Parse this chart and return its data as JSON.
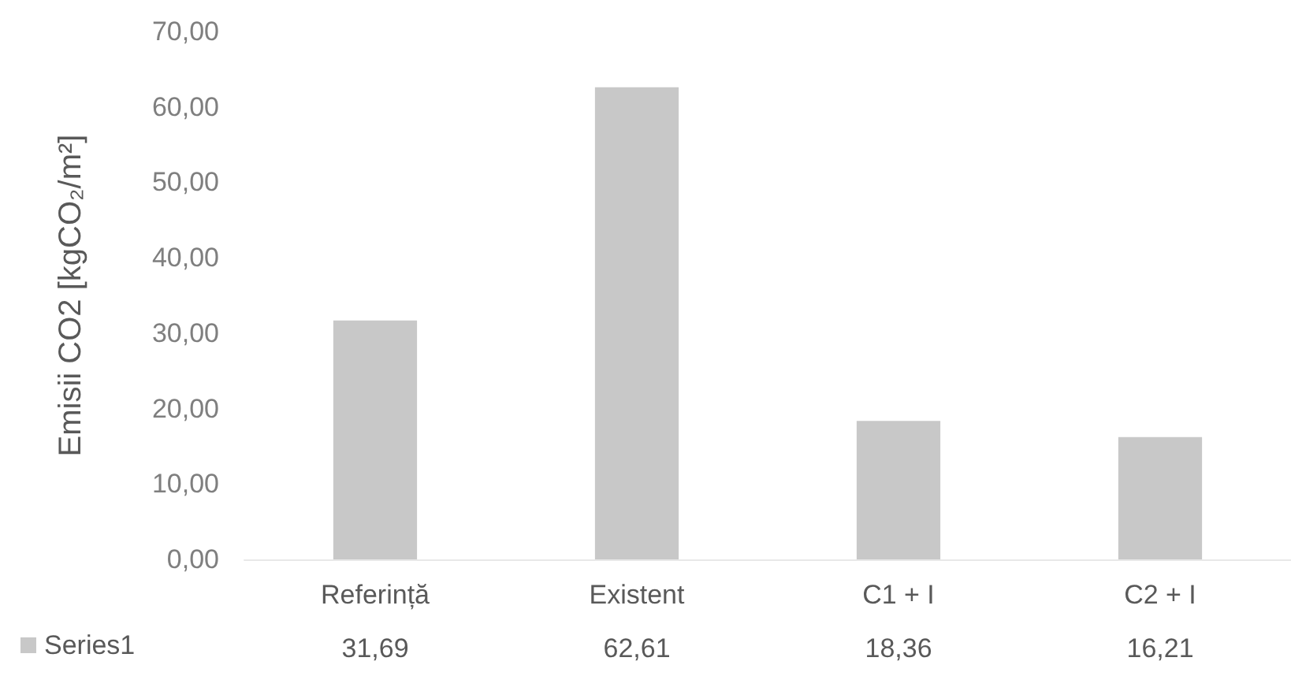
{
  "chart_data": {
    "type": "bar",
    "ylabel": "Emisii CO2 [kgCO₂/m²]",
    "categories": [
      "Referință",
      "Existent",
      "C1 + I",
      "C2 + I"
    ],
    "series": [
      {
        "name": "Series1",
        "color": "#c8c8c8",
        "values": [
          31.69,
          62.61,
          18.36,
          16.21
        ]
      }
    ],
    "value_labels": [
      "31,69",
      "62,61",
      "18,36",
      "16,21"
    ],
    "ylim": [
      0,
      70
    ],
    "yticks": [
      {
        "value": 0,
        "label": "0,00"
      },
      {
        "value": 10,
        "label": "10,00"
      },
      {
        "value": 20,
        "label": "20,00"
      },
      {
        "value": 30,
        "label": "30,00"
      },
      {
        "value": 40,
        "label": "40,00"
      },
      {
        "value": 50,
        "label": "50,00"
      },
      {
        "value": 60,
        "label": "60,00"
      },
      {
        "value": 70,
        "label": "70,00"
      }
    ],
    "grid": false,
    "legend": "bottom left"
  }
}
